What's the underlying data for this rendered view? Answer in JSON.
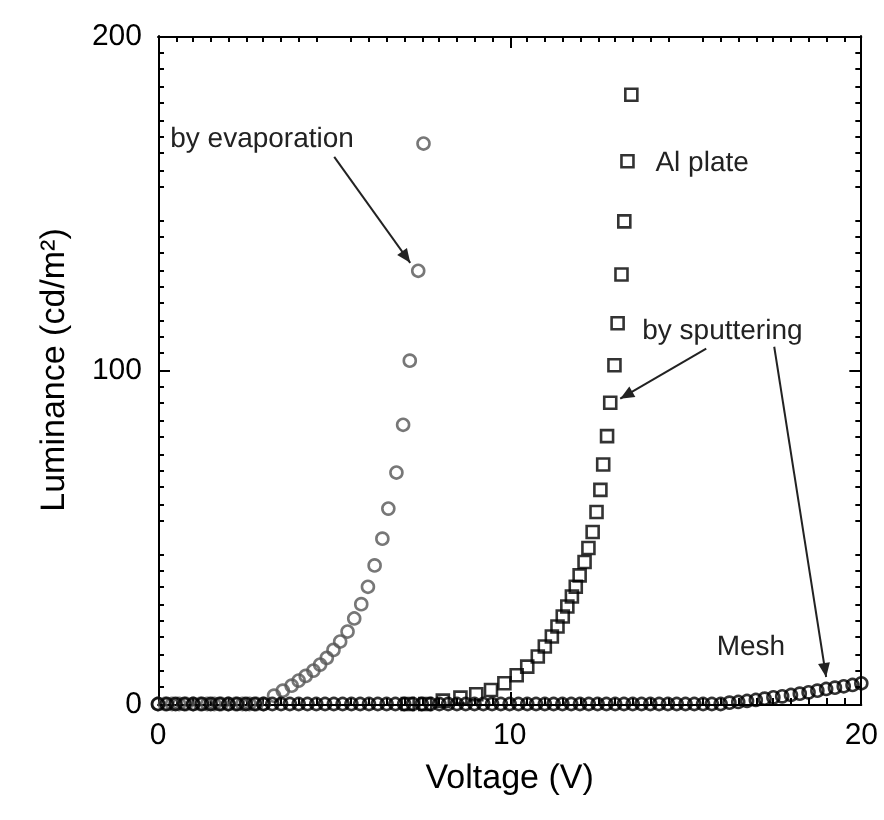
{
  "chart_data": {
    "type": "scatter",
    "xlabel": "Voltage (V)",
    "ylabel": "Luminance (cd/m²)",
    "xlim": [
      0,
      20
    ],
    "xticks": [
      0,
      10,
      20
    ],
    "ylim": [
      0,
      200
    ],
    "yticks": [
      0,
      100,
      200
    ],
    "grid": false,
    "legend": false,
    "series": [
      {
        "color": "#555555",
        "marker": "circle",
        "x": [
          0,
          0.2,
          0.4,
          0.6,
          0.8,
          1.0,
          1.2,
          1.4,
          1.6,
          1.8,
          2.0,
          2.2,
          2.4,
          2.6,
          2.8,
          3.0,
          3.3,
          3.55,
          3.8,
          4.0,
          4.2,
          4.42,
          4.61,
          4.8,
          4.99,
          5.18,
          5.39,
          5.58,
          5.78,
          5.97,
          6.16,
          6.38,
          6.55,
          6.78,
          6.97,
          7.16,
          7.4,
          7.55
        ],
        "values": [
          0,
          0,
          0,
          0,
          0,
          0,
          0,
          0,
          0,
          0,
          0,
          0,
          0,
          0,
          0,
          0,
          2.5,
          4,
          5.5,
          7,
          8.4,
          10,
          11.8,
          13.8,
          16.2,
          18.7,
          21.7,
          25.6,
          29.9,
          35.1,
          41.5,
          49.5,
          58.5,
          69.3,
          83.6,
          102.8,
          129.7,
          167.8
        ]
      },
      {
        "name": "Al plate",
        "color": "#000000",
        "marker": "square",
        "x": [
          7.1,
          7.6,
          8.1,
          8.6,
          9.05,
          9.47,
          9.85,
          10.2,
          10.5,
          10.8,
          11,
          11.2,
          11.36,
          11.51,
          11.64,
          11.77,
          11.88,
          11.99,
          12.13,
          12.24,
          12.36,
          12.47,
          12.58,
          12.66,
          12.77,
          12.86,
          12.98,
          13.07,
          13.18,
          13.26,
          13.35,
          13.46
        ],
        "values": [
          0,
          0,
          1,
          1.9,
          2.9,
          4.2,
          6.2,
          8.6,
          11.2,
          14.2,
          17.2,
          20.2,
          23.2,
          26.2,
          29.2,
          32.2,
          35.1,
          38.5,
          42.5,
          46.7,
          51.5,
          57.5,
          64.1,
          71.7,
          80.2,
          90.2,
          101.4,
          114,
          128.6,
          144.5,
          162.5,
          182.4
        ]
      },
      {
        "name": "Mesh",
        "color": "#000000",
        "marker": "circle",
        "x": [
          0,
          0.25,
          0.5,
          0.75,
          1,
          1.25,
          1.5,
          1.75,
          2,
          2.25,
          2.5,
          2.75,
          3,
          3.25,
          3.5,
          3.75,
          4,
          4.25,
          4.5,
          4.75,
          5,
          5.25,
          5.5,
          5.75,
          6,
          6.25,
          6.5,
          6.75,
          7,
          7.25,
          7.5,
          7.75,
          8,
          8.25,
          8.5,
          8.75,
          9,
          9.25,
          9.5,
          9.75,
          10,
          10.25,
          10.5,
          10.75,
          11,
          11.25,
          11.5,
          11.75,
          12,
          12.25,
          12.5,
          12.75,
          13,
          13.25,
          13.5,
          13.75,
          14,
          14.25,
          14.5,
          14.75,
          15,
          15.25,
          15.5,
          15.75,
          16,
          16.25,
          16.5,
          16.75,
          17,
          17.25,
          17.5,
          17.75,
          18,
          18.25,
          18.5,
          18.75,
          19,
          19.25,
          19.5,
          19.75,
          20
        ],
        "values": [
          0,
          0,
          0,
          0,
          0,
          0,
          0,
          0,
          0,
          0,
          0,
          0,
          0,
          0,
          0,
          0,
          0,
          0,
          0,
          0,
          0,
          0,
          0,
          0,
          0,
          0,
          0,
          0,
          0,
          0,
          0,
          0,
          0,
          0,
          0,
          0,
          0,
          0,
          0,
          0,
          0,
          0,
          0,
          0,
          0,
          0,
          0,
          0,
          0,
          0,
          0,
          0,
          0,
          0,
          0,
          0,
          0,
          0,
          0,
          0,
          0,
          0,
          0,
          0,
          0,
          0.4,
          0.6,
          0.9,
          1.2,
          1.6,
          2.0,
          2.3,
          2.7,
          3.1,
          3.5,
          4.0,
          4.5,
          4.9,
          5.3,
          5.7,
          6.2
        ]
      }
    ],
    "annotations": [
      {
        "text": "by evaporation",
        "x": 7.4,
        "y": 129.7
      },
      {
        "text": "by sputtering",
        "x": 12.86,
        "y": 90.2
      }
    ]
  }
}
